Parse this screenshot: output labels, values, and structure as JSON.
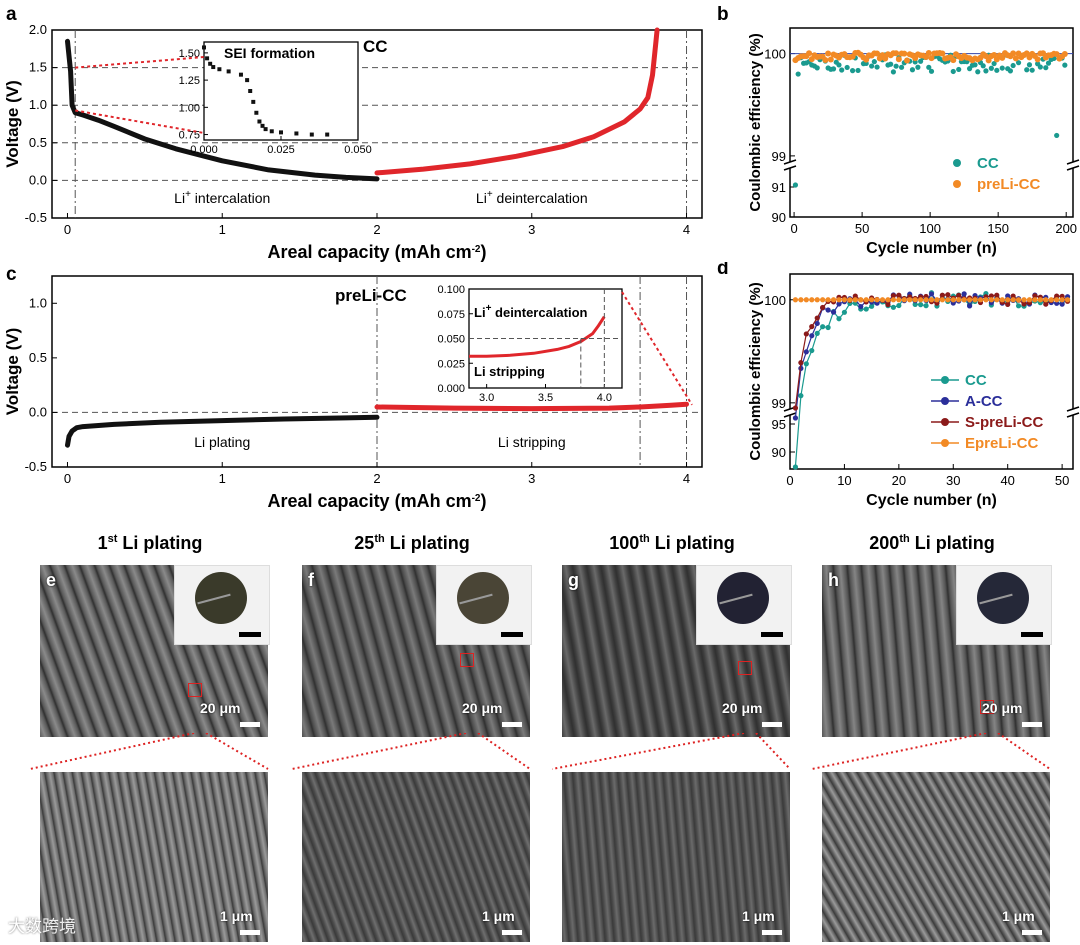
{
  "panel_labels": {
    "a": "a",
    "b": "b",
    "c": "c",
    "d": "d",
    "e": "e",
    "f": "f",
    "g": "g",
    "h": "h"
  },
  "chart_data": [
    {
      "id": "a",
      "type": "line",
      "panel_title": "CC",
      "xlabel": "Areal capacity (mAh cm",
      "xlabel_sup": "-2",
      "xlabel_end": ")",
      "ylabel": "Voltage (V)",
      "xlim": [
        -0.1,
        4.1
      ],
      "ylim": [
        -0.5,
        2.0
      ],
      "xticks": [
        0,
        1,
        2,
        3,
        4
      ],
      "yticks": [
        "-0.5",
        "0.0",
        "0.5",
        "1.0",
        "1.5",
        "2.0"
      ],
      "ytick_values": [
        -0.5,
        0.0,
        0.5,
        1.0,
        1.5,
        2.0
      ],
      "region_labels": [
        {
          "pre": "Li",
          "sup": "+",
          "post": " intercalation"
        },
        {
          "pre": "Li",
          "sup": "+",
          "post": " deintercalation"
        }
      ],
      "series": [
        {
          "color": "#111111",
          "x": [
            0.0,
            0.02,
            0.03,
            0.05,
            0.1,
            0.2,
            0.3,
            0.5,
            0.7,
            1.0,
            1.3,
            1.6,
            1.8,
            2.0
          ],
          "y": [
            1.85,
            1.45,
            1.0,
            0.9,
            0.87,
            0.8,
            0.72,
            0.55,
            0.42,
            0.26,
            0.14,
            0.07,
            0.04,
            0.02
          ]
        },
        {
          "color": "#e0262b",
          "x": [
            2.0,
            2.3,
            2.6,
            2.9,
            3.2,
            3.4,
            3.6,
            3.7,
            3.75,
            3.78,
            3.8,
            3.81
          ],
          "y": [
            0.1,
            0.15,
            0.22,
            0.32,
            0.45,
            0.58,
            0.78,
            0.95,
            1.1,
            1.4,
            1.8,
            2.0
          ]
        }
      ],
      "hlines": [
        1.5,
        1.0,
        0.5,
        0.0
      ],
      "vlines": [
        0.05,
        4.0
      ],
      "inset": {
        "title": "SEI formation",
        "xlim": [
          0.0,
          0.05
        ],
        "ylim": [
          0.7,
          1.6
        ],
        "xticks": [
          "0.000",
          "0.025",
          "0.050"
        ],
        "xtick_values": [
          0.0,
          0.025,
          0.05
        ],
        "yticks": [
          "0.75",
          "1.00",
          "1.25",
          "1.50"
        ],
        "ytick_values": [
          0.75,
          1.0,
          1.25,
          1.5
        ],
        "x": [
          0.0,
          0.001,
          0.002,
          0.003,
          0.005,
          0.008,
          0.012,
          0.014,
          0.015,
          0.016,
          0.017,
          0.018,
          0.019,
          0.02,
          0.022,
          0.025,
          0.03,
          0.035,
          0.04
        ],
        "y": [
          1.55,
          1.45,
          1.4,
          1.37,
          1.35,
          1.33,
          1.3,
          1.25,
          1.15,
          1.05,
          0.95,
          0.87,
          0.83,
          0.8,
          0.78,
          0.77,
          0.76,
          0.75,
          0.75
        ]
      }
    },
    {
      "id": "b",
      "type": "scatter",
      "xlabel": "Cycle number (n)",
      "ylabel": "Coulombic efficiency (%)",
      "xlim": [
        -3,
        205
      ],
      "xticks": [
        0,
        50,
        100,
        150,
        200
      ],
      "yticks_upper": [
        "99",
        "100"
      ],
      "yticks_lower": [
        "90",
        "91"
      ],
      "legend_position": "bottom-right",
      "series": [
        {
          "name": "CC",
          "color": "#1a9a8f"
        },
        {
          "name": "preLi-CC",
          "color": "#f28a25"
        }
      ]
    },
    {
      "id": "c",
      "type": "line",
      "panel_title": "preLi-CC",
      "xlabel": "Areal capacity (mAh cm",
      "xlabel_sup": "-2",
      "xlabel_end": ")",
      "ylabel": "Voltage (V)",
      "xlim": [
        -0.1,
        4.1
      ],
      "ylim": [
        -0.5,
        1.25
      ],
      "xticks": [
        0,
        1,
        2,
        3,
        4
      ],
      "yticks": [
        "-0.5",
        "0.0",
        "0.5",
        "1.0"
      ],
      "ytick_values": [
        -0.5,
        0.0,
        0.5,
        1.0
      ],
      "region_labels": [
        {
          "pre": "Li plating",
          "sup": "",
          "post": ""
        },
        {
          "pre": "Li stripping",
          "sup": "",
          "post": ""
        }
      ],
      "series": [
        {
          "color": "#111111",
          "x": [
            0.0,
            0.01,
            0.03,
            0.06,
            0.1,
            0.3,
            0.6,
            1.0,
            1.4,
            1.8,
            2.0
          ],
          "y": [
            -0.3,
            -0.22,
            -0.17,
            -0.14,
            -0.13,
            -0.11,
            -0.09,
            -0.075,
            -0.06,
            -0.05,
            -0.045
          ]
        },
        {
          "color": "#e0262b",
          "x": [
            2.0,
            2.5,
            3.0,
            3.5,
            3.7,
            3.9,
            4.0
          ],
          "y": [
            0.05,
            0.04,
            0.035,
            0.04,
            0.05,
            0.065,
            0.075
          ]
        }
      ],
      "hlines": [
        0.0
      ],
      "vlines": [
        2.0,
        3.7,
        4.0
      ],
      "inset": {
        "title_pre": "Li",
        "title_sup": "+",
        "title_post": " deintercalation",
        "sub_title": "Li stripping",
        "xlim": [
          2.85,
          4.15
        ],
        "ylim": [
          0.0,
          0.1
        ],
        "xticks": [
          "3.0",
          "3.5",
          "4.0"
        ],
        "xtick_values": [
          3.0,
          3.5,
          4.0
        ],
        "yticks": [
          "0.000",
          "0.025",
          "0.050",
          "0.075",
          "0.100"
        ],
        "ytick_values": [
          0.0,
          0.025,
          0.05,
          0.075,
          0.1
        ],
        "x": [
          2.85,
          3.0,
          3.2,
          3.4,
          3.6,
          3.7,
          3.8,
          3.9,
          3.95,
          4.0
        ],
        "y": [
          0.032,
          0.032,
          0.033,
          0.035,
          0.039,
          0.042,
          0.047,
          0.055,
          0.063,
          0.072
        ]
      }
    },
    {
      "id": "d",
      "type": "line",
      "xlabel": "Cycle number (n)",
      "ylabel": "Coulombic efficiency (%)",
      "xlim": [
        0,
        52
      ],
      "xticks": [
        0,
        10,
        20,
        30,
        40,
        50
      ],
      "yticks_upper": [
        "99",
        "100"
      ],
      "yticks_lower": [
        "90",
        "95"
      ],
      "legend_position": "bottom-right",
      "series": [
        {
          "name": "CC",
          "color": "#1a9a8f"
        },
        {
          "name": "A-CC",
          "color": "#2b2f9a"
        },
        {
          "name": "S-preLi-CC",
          "color": "#8b1a1a"
        },
        {
          "name": "EpreLi-CC",
          "color": "#f28a25"
        }
      ]
    }
  ],
  "sem": [
    {
      "letter": "e",
      "ordinal": "1",
      "ordsup": "st",
      "title": " Li plating",
      "scale_top": "20 μm",
      "scale_bottom": "1 μm"
    },
    {
      "letter": "f",
      "ordinal": "25",
      "ordsup": "th",
      "title": " Li plating",
      "scale_top": "20 μm",
      "scale_bottom": "1 μm"
    },
    {
      "letter": "g",
      "ordinal": "100",
      "ordsup": "th",
      "title": " Li plating",
      "scale_top": "20 μm",
      "scale_bottom": "1 μm"
    },
    {
      "letter": "h",
      "ordinal": "200",
      "ordsup": "th",
      "title": " Li plating",
      "scale_top": "20 μm",
      "scale_bottom": "1 μm"
    }
  ],
  "watermark": "大数跨境",
  "colors": {
    "black_curve": "#111111",
    "red_curve": "#e0262b",
    "teal": "#1a9a8f",
    "orange": "#f28a25",
    "navy": "#2b2f9a",
    "maroon": "#8b1a1a"
  }
}
